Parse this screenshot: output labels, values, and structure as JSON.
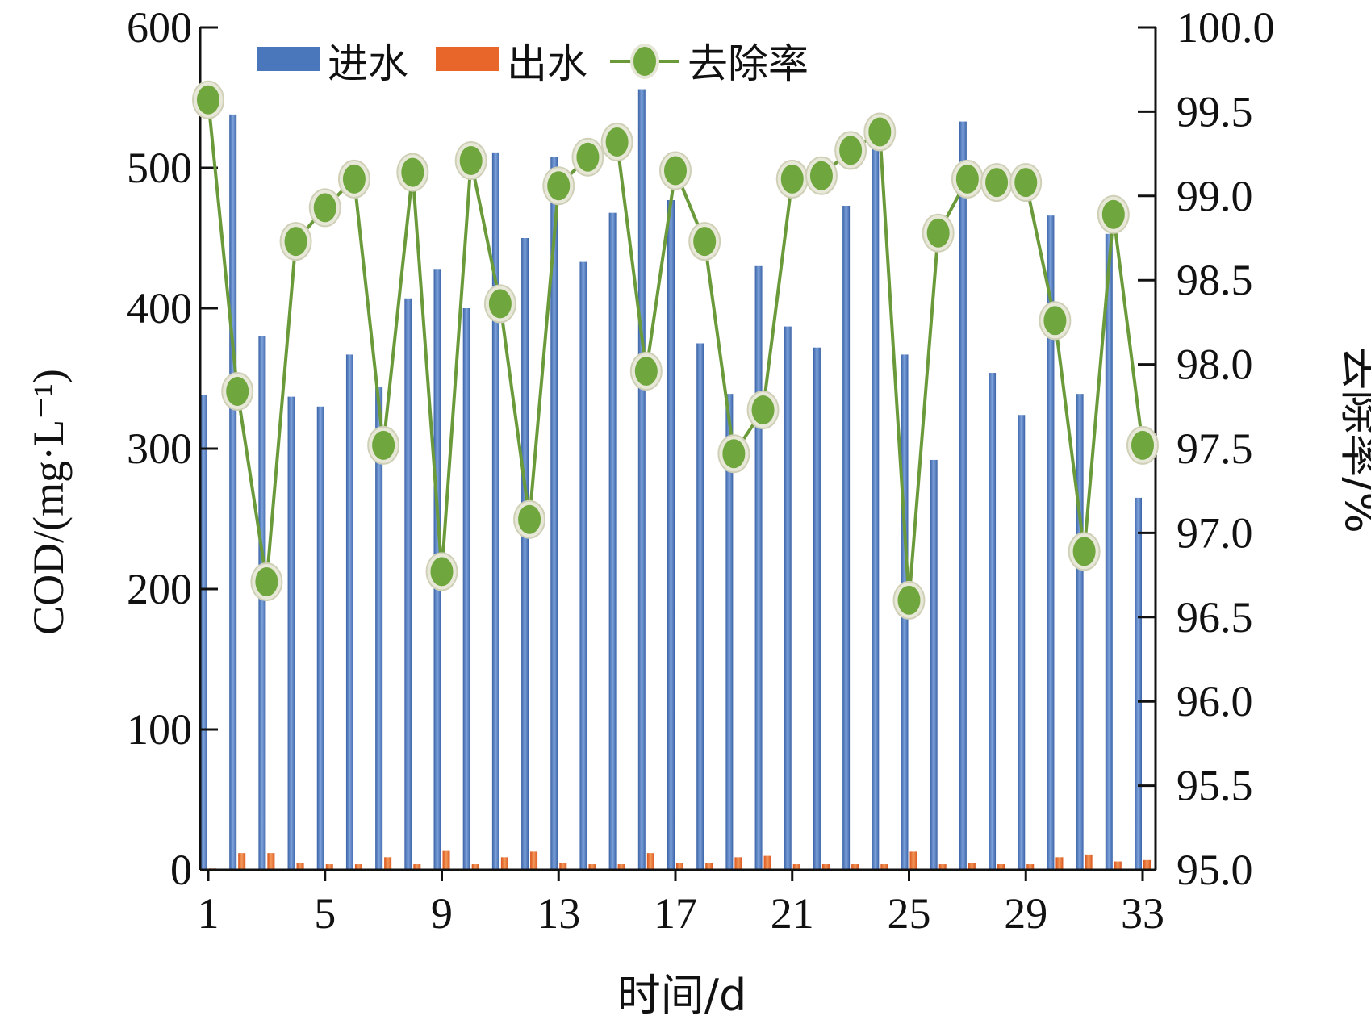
{
  "chart_data": {
    "type": "bar",
    "xlabel": "时间/d",
    "ylabel_left": "COD/(mg·L⁻¹)",
    "ylabel_right": "去除率/%",
    "x": [
      1,
      2,
      3,
      4,
      5,
      6,
      7,
      8,
      9,
      10,
      11,
      12,
      13,
      14,
      15,
      16,
      17,
      18,
      19,
      20,
      21,
      22,
      23,
      24,
      25,
      26,
      27,
      28,
      29,
      30,
      31,
      32,
      33
    ],
    "x_tick_labels": [
      "1",
      "5",
      "9",
      "13",
      "17",
      "21",
      "25",
      "29",
      "33"
    ],
    "y_left_ticks": [
      "0",
      "100",
      "200",
      "300",
      "400",
      "500",
      "600"
    ],
    "y_right_ticks": [
      "95.0",
      "95.5",
      "96.0",
      "96.5",
      "97.0",
      "97.5",
      "98.0",
      "98.5",
      "99.0",
      "99.5",
      "100.0"
    ],
    "ylim_left": [
      0,
      600
    ],
    "ylim_right": [
      95.0,
      100.0
    ],
    "legend_position": "top-left",
    "series": [
      {
        "name": "进水",
        "kind": "bar",
        "axis": "left",
        "color": "#4a76bb",
        "values": [
          338,
          538,
          380,
          337,
          330,
          367,
          344,
          407,
          428,
          400,
          511,
          450,
          508,
          433,
          468,
          556,
          477,
          375,
          339,
          430,
          387,
          372,
          473,
          516,
          367,
          292,
          533,
          354,
          324,
          466,
          339,
          453,
          265
        ]
      },
      {
        "name": "出水",
        "kind": "bar",
        "axis": "left",
        "color": "#e8662a",
        "values": [
          1,
          12,
          12,
          5,
          4,
          4,
          9,
          4,
          14,
          4,
          9,
          13,
          5,
          4,
          4,
          12,
          5,
          5,
          9,
          10,
          4,
          4,
          4,
          4,
          13,
          4,
          5,
          4,
          4,
          9,
          11,
          6,
          7
        ]
      },
      {
        "name": "去除率",
        "kind": "line",
        "axis": "right",
        "color": "#6a9a3a",
        "marker_color": "#6fa63d",
        "values": [
          99.57,
          97.84,
          96.71,
          98.73,
          98.93,
          99.1,
          97.52,
          99.14,
          96.77,
          99.21,
          98.36,
          97.08,
          99.06,
          99.23,
          99.32,
          97.96,
          99.15,
          98.73,
          97.47,
          97.73,
          99.1,
          99.12,
          99.27,
          99.38,
          96.6,
          98.78,
          99.1,
          99.08,
          99.08,
          98.26,
          96.89,
          98.89,
          97.52
        ]
      }
    ]
  }
}
